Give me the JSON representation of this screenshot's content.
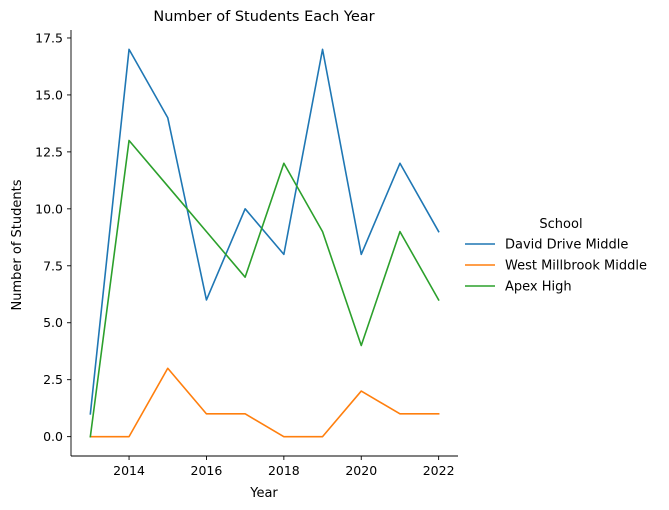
{
  "chart_data": {
    "type": "line",
    "title": "Number of Students Each Year",
    "xlabel": "Year",
    "ylabel": "Number of Students",
    "x": [
      2013,
      2014,
      2015,
      2016,
      2017,
      2018,
      2019,
      2020,
      2021,
      2022
    ],
    "xlim": [
      2012.5,
      2022.5
    ],
    "ylim": [
      -0.85,
      17.85
    ],
    "x_ticks": [
      "2014",
      "2016",
      "2018",
      "2020",
      "2022"
    ],
    "y_ticks": [
      "0.0",
      "2.5",
      "5.0",
      "7.5",
      "10.0",
      "12.5",
      "15.0",
      "17.5"
    ],
    "grid": false,
    "legend": {
      "title": "School",
      "placement": "right"
    },
    "series": [
      {
        "name": "David Drive Middle",
        "color": "#1f77b4",
        "values": [
          1,
          17,
          14,
          6,
          10,
          8,
          17,
          8,
          12,
          9
        ]
      },
      {
        "name": "West Millbrook Middle",
        "color": "#ff7f0e",
        "values": [
          0,
          0,
          3,
          1,
          1,
          0,
          0,
          2,
          1,
          1
        ]
      },
      {
        "name": "Apex High",
        "color": "#2ca02c",
        "values": [
          0,
          13,
          11,
          9,
          7,
          12,
          9,
          4,
          9,
          6
        ]
      }
    ]
  }
}
